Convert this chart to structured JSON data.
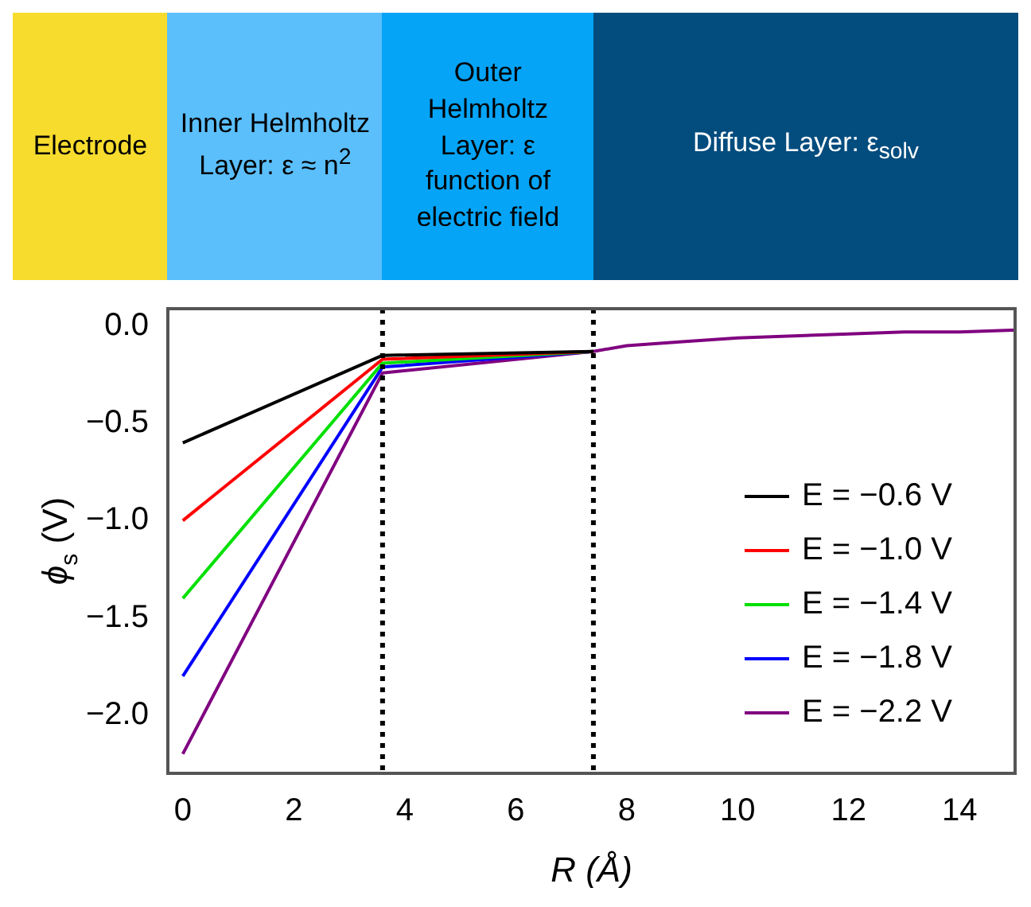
{
  "chart_data": {
    "type": "line",
    "xlabel": "R (Å)",
    "ylabel": "ϕ$_{s}$ (V)",
    "annotations": [
      "Electrode",
      "Inner Helmholtz Layer: ε ≈ n$^{2}$",
      "Outer Helmholtz Layer: ε function of electric field",
      "Diffuse Layer: ε$_{solv}$"
    ],
    "x": [
      0,
      3.6,
      7.4,
      8,
      9,
      10,
      11,
      12,
      13,
      14,
      15
    ],
    "series": [
      {
        "name": "E = −0.6 V",
        "color": "#000000",
        "values": [
          -0.6,
          -0.15,
          -0.13,
          null,
          null,
          null,
          null,
          null,
          null,
          null,
          null
        ]
      },
      {
        "name": "E = −1.0 V",
        "color": "#ff0000",
        "values": [
          -1.0,
          -0.17,
          -0.13,
          null,
          null,
          null,
          null,
          null,
          null,
          null,
          null
        ]
      },
      {
        "name": "E = −1.4 V",
        "color": "#00e000",
        "values": [
          -1.4,
          -0.19,
          -0.13,
          null,
          null,
          null,
          null,
          null,
          null,
          null,
          null
        ]
      },
      {
        "name": "E = −1.8 V",
        "color": "#0000ff",
        "values": [
          -1.8,
          -0.21,
          -0.13,
          null,
          null,
          null,
          null,
          null,
          null,
          null,
          null
        ]
      },
      {
        "name": "E = −2.2 V",
        "color": "#800080",
        "values": [
          -2.2,
          -0.24,
          -0.13,
          -0.1,
          -0.08,
          -0.06,
          -0.05,
          -0.04,
          -0.03,
          -0.03,
          -0.02
        ]
      }
    ],
    "xlim": [
      -0.27,
      15.0
    ],
    "xticks": [
      0,
      2,
      4,
      6,
      8,
      10,
      12,
      14
    ],
    "ylim": [
      -2.3,
      0.09
    ],
    "yticks": [
      {
        "value": 0,
        "label": "0.0"
      },
      {
        "value": -0.5,
        "label": "−0.5"
      },
      {
        "value": -1.0,
        "label": "−1.0"
      },
      {
        "value": -1.5,
        "label": "−1.5"
      },
      {
        "value": -2.0,
        "label": "−2.0"
      }
    ],
    "ref_lines": [
      {
        "axis": "x",
        "value": 3.6,
        "color": "#000000",
        "line_style": "dotted"
      },
      {
        "axis": "x",
        "value": 7.4,
        "color": "#000000",
        "line_style": "dotted"
      }
    ],
    "grid": false,
    "legend": "right",
    "marker": "none",
    "line_style": "solid"
  }
}
